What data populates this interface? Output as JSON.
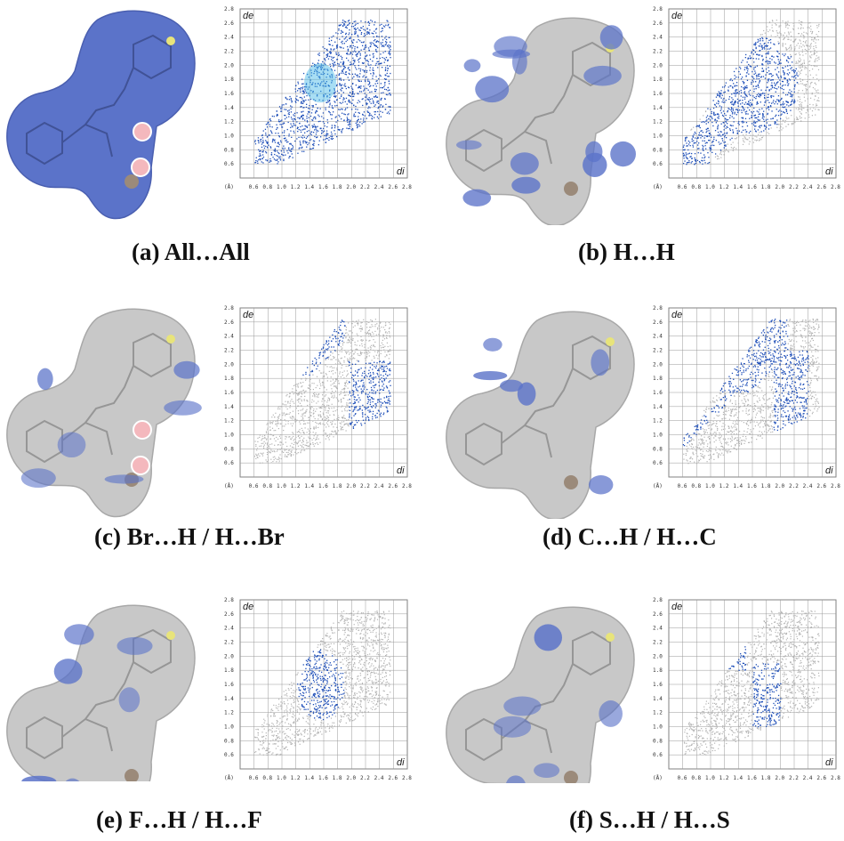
{
  "panels": [
    {
      "id": "a",
      "caption": "(a) All…All",
      "surface": "full-blue",
      "highlight": "all"
    },
    {
      "id": "b",
      "caption": "(b) H…H",
      "surface": "partial",
      "highlight": "hh"
    },
    {
      "id": "c",
      "caption": "(c) Br…H / H…Br",
      "surface": "red-spots",
      "highlight": "brh"
    },
    {
      "id": "d",
      "caption": "(d) C…H / H…C",
      "surface": "partial",
      "highlight": "ch"
    },
    {
      "id": "e",
      "caption": "(e) F…H / H…F",
      "surface": "partial",
      "highlight": "fh"
    },
    {
      "id": "f",
      "caption": "(f) S…H / H…S",
      "surface": "partial",
      "highlight": "sh"
    }
  ],
  "plot_axes": {
    "y_label": "de",
    "x_label": "di",
    "unit_label": "(Å)",
    "y_ticks": [
      "0.6",
      "0.8",
      "1.0",
      "1.2",
      "1.4",
      "1.6",
      "1.8",
      "2.0",
      "2.2",
      "2.4",
      "2.6",
      "2.8"
    ],
    "x_ticks": [
      "0.6",
      "0.8",
      "1.0",
      "1.2",
      "1.4",
      "1.6",
      "1.8",
      "2.0",
      "2.2",
      "2.4",
      "2.6",
      "2.8"
    ],
    "x_range": [
      0.4,
      2.8
    ],
    "y_range": [
      0.4,
      2.8
    ]
  },
  "colors": {
    "highlight": "#1f4fb8",
    "background_points": "#b3b3b3",
    "surface_gray": "#c8c8c8",
    "surface_blue": "#5b73c9",
    "red_spot": "#f4b8bd"
  }
}
